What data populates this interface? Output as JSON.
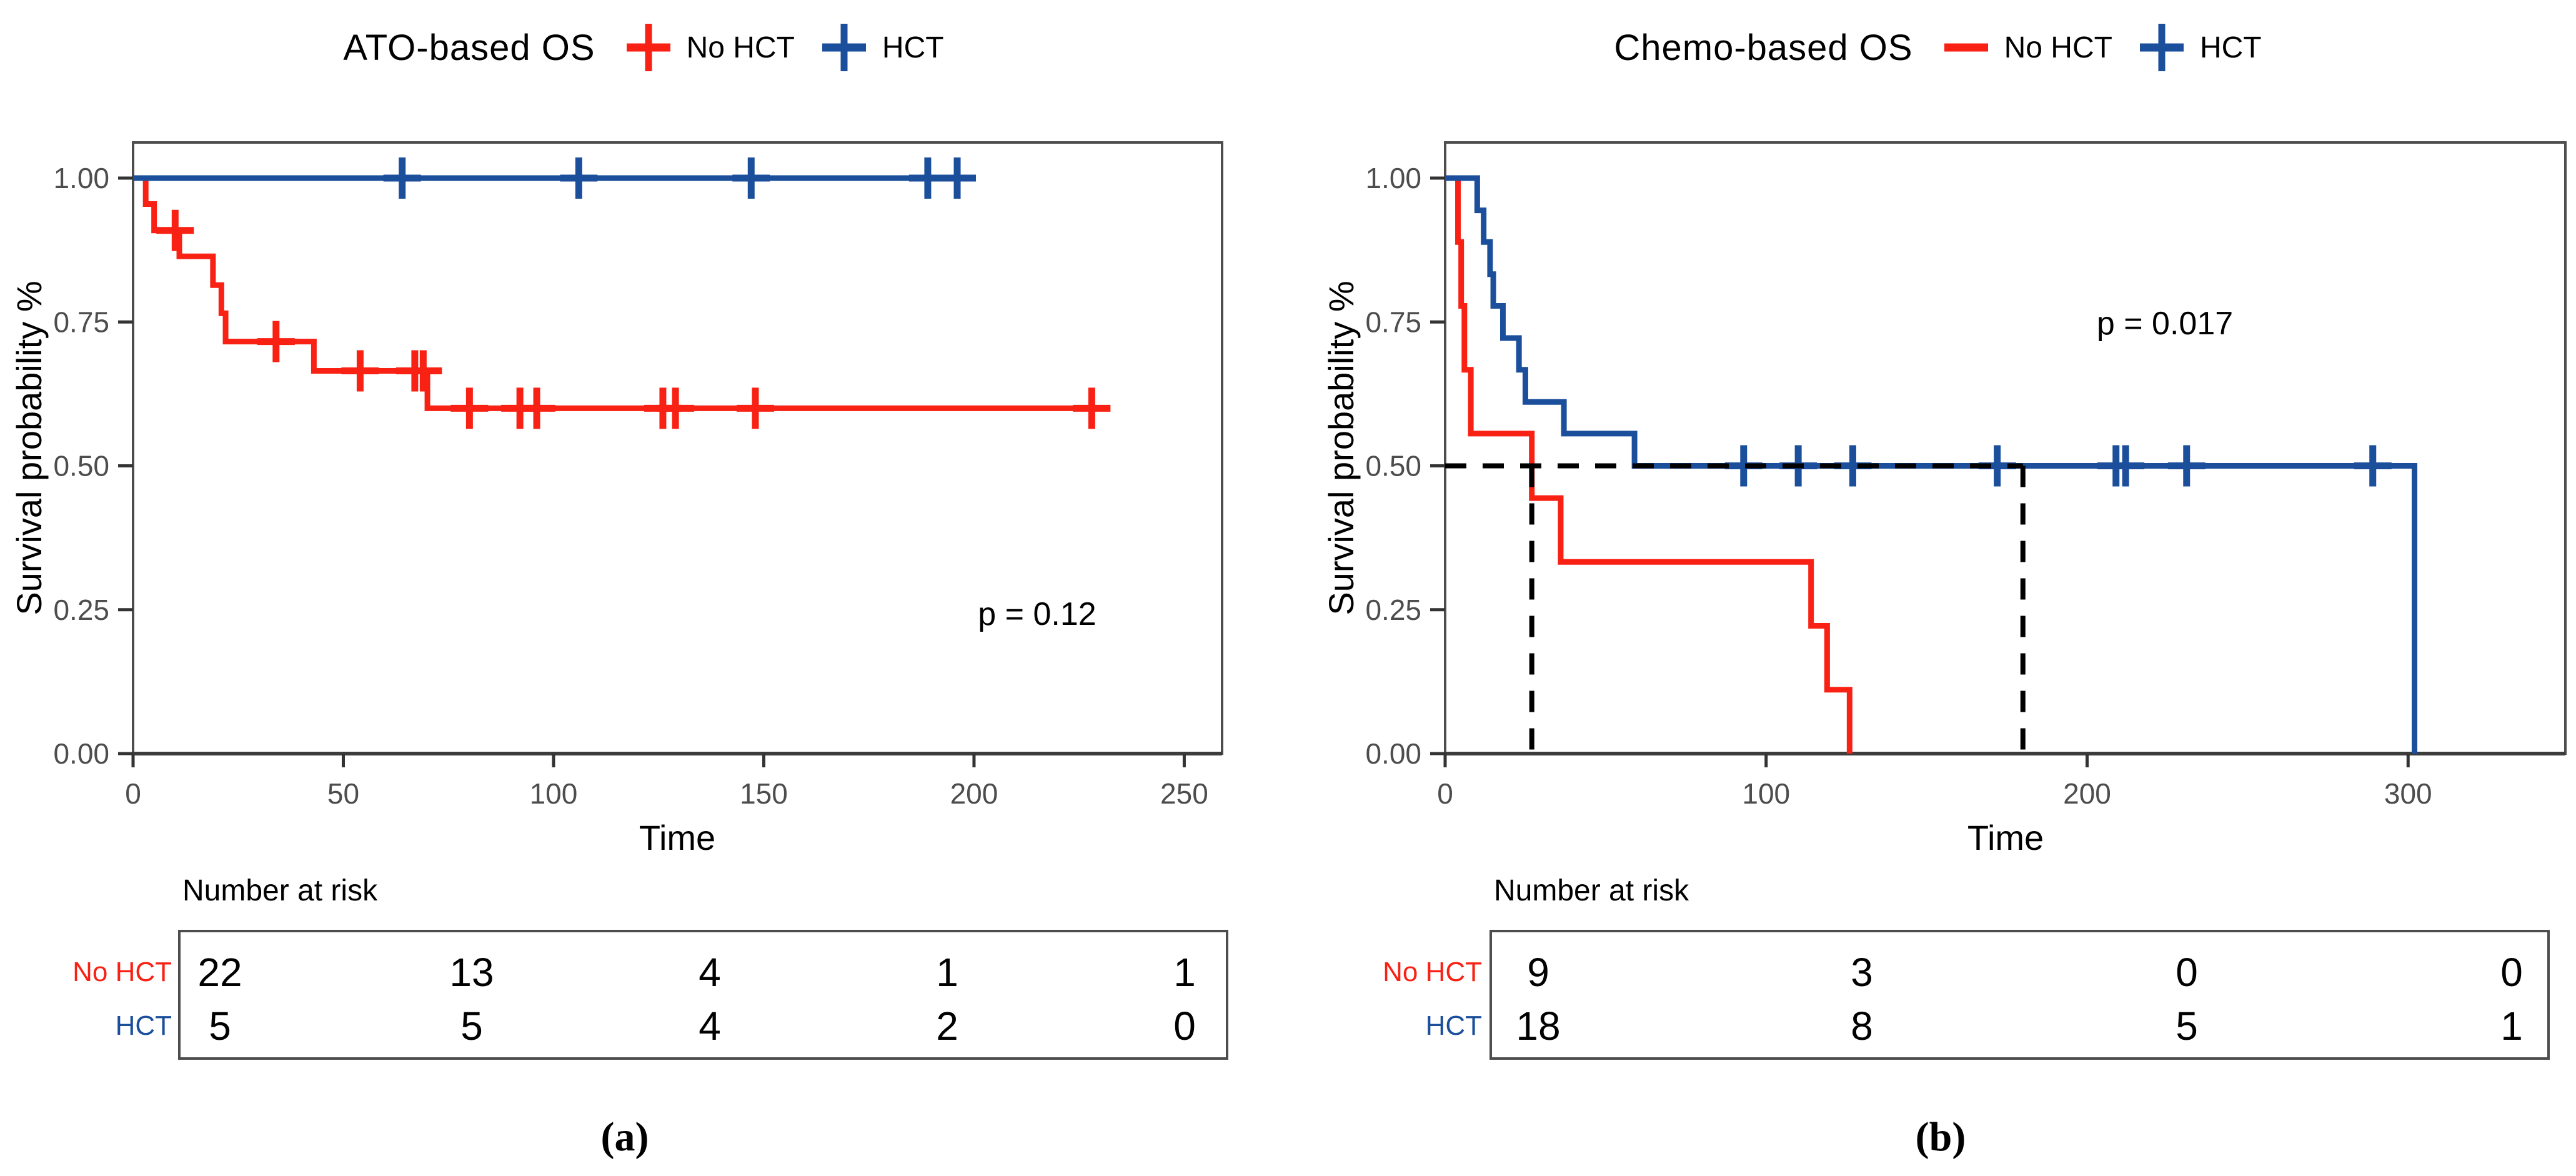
{
  "figure": {
    "background": "#ffffff",
    "colors": {
      "no_hct": "#f82114",
      "hct": "#1b4f9c",
      "axis": "#4d4d4d",
      "tick_label": "#4d4d4d",
      "text": "#000000",
      "reference_dash": "#000000"
    }
  },
  "chart_data": [
    {
      "type": "line",
      "subtype": "kaplan-meier-step",
      "title": "ATO-based OS",
      "caption": "(a)",
      "xlabel": "Time",
      "ylabel": "Survival probability %",
      "p_value_label": "p = 0.12",
      "xlim": [
        0,
        259
      ],
      "ylim": [
        0,
        1
      ],
      "x_ticks": [
        "0",
        "50",
        "100",
        "150",
        "200",
        "250"
      ],
      "y_ticks": [
        {
          "label": "1.00",
          "value": 1.0
        },
        {
          "label": "0.75",
          "value": 0.75
        },
        {
          "label": "0.50",
          "value": 0.5
        },
        {
          "label": "0.25",
          "value": 0.25
        },
        {
          "label": "0.00",
          "value": 0.0
        }
      ],
      "grid": false,
      "legend_position": "top",
      "series": [
        {
          "name": "No HCT",
          "color": "#f82114",
          "legend_marker": "plus",
          "start": [
            0,
            1.0
          ],
          "steps": [
            [
              3,
              0.955
            ],
            [
              5,
              0.909
            ],
            [
              11,
              0.864
            ],
            [
              19,
              0.814
            ],
            [
              21,
              0.765
            ],
            [
              22,
              0.716
            ],
            [
              43,
              0.665
            ],
            [
              70,
              0.6
            ]
          ],
          "end_time": 230,
          "censors": [
            [
              10,
              0.909
            ],
            [
              34,
              0.716
            ],
            [
              54,
              0.665
            ],
            [
              67,
              0.665
            ],
            [
              69,
              0.665
            ],
            [
              80,
              0.6
            ],
            [
              92,
              0.6
            ],
            [
              96,
              0.6
            ],
            [
              126,
              0.6
            ],
            [
              129,
              0.6
            ],
            [
              148,
              0.6
            ],
            [
              228,
              0.6
            ]
          ]
        },
        {
          "name": "HCT",
          "color": "#1b4f9c",
          "legend_marker": "plus",
          "start": [
            0,
            1.0
          ],
          "steps": [],
          "end_time": 198,
          "censors": [
            [
              64,
              1.0
            ],
            [
              106,
              1.0
            ],
            [
              147,
              1.0
            ],
            [
              189,
              1.0
            ],
            [
              196,
              1.0
            ]
          ]
        }
      ],
      "reference_lines": null,
      "risk_table": {
        "title": "Number at risk",
        "rows": [
          {
            "label": "No HCT",
            "color": "#f82114",
            "values": [
              "22",
              "13",
              "4",
              "1",
              "1"
            ]
          },
          {
            "label": "HCT",
            "color": "#1b4f9c",
            "values": [
              "5",
              "5",
              "4",
              "2",
              "0"
            ]
          }
        ]
      }
    },
    {
      "type": "line",
      "subtype": "kaplan-meier-step",
      "title": "Chemo-based OS",
      "caption": "(b)",
      "xlabel": "Time",
      "ylabel": "Survival probability %",
      "p_value_label": "p = 0.017",
      "xlim": [
        0,
        349
      ],
      "ylim": [
        0,
        1
      ],
      "x_ticks": [
        "0",
        "100",
        "200",
        "300"
      ],
      "y_ticks": [
        {
          "label": "1.00",
          "value": 1.0
        },
        {
          "label": "0.75",
          "value": 0.75
        },
        {
          "label": "0.50",
          "value": 0.5
        },
        {
          "label": "0.25",
          "value": 0.25
        },
        {
          "label": "0.00",
          "value": 0.0
        }
      ],
      "grid": false,
      "legend_position": "top",
      "series": [
        {
          "name": "No HCT",
          "color": "#f82114",
          "legend_marker": "line",
          "start": [
            0,
            1.0
          ],
          "steps": [
            [
              4,
              0.889
            ],
            [
              5,
              0.778
            ],
            [
              6,
              0.667
            ],
            [
              8,
              0.556
            ],
            [
              27,
              0.444
            ],
            [
              36,
              0.333
            ],
            [
              114,
              0.222
            ],
            [
              119,
              0.111
            ],
            [
              126,
              0.0
            ]
          ],
          "end_time": 126,
          "censors": []
        },
        {
          "name": "HCT",
          "color": "#1b4f9c",
          "legend_marker": "plus",
          "start": [
            0,
            1.0
          ],
          "steps": [
            [
              10,
              0.944
            ],
            [
              12,
              0.889
            ],
            [
              14,
              0.833
            ],
            [
              15,
              0.778
            ],
            [
              18,
              0.722
            ],
            [
              23,
              0.667
            ],
            [
              25,
              0.611
            ],
            [
              37,
              0.556
            ],
            [
              59,
              0.5
            ],
            [
              302,
              0.0
            ]
          ],
          "end_time": 302,
          "censors": [
            [
              93,
              0.5
            ],
            [
              110,
              0.5
            ],
            [
              127,
              0.5
            ],
            [
              172,
              0.5
            ],
            [
              209,
              0.5
            ],
            [
              212,
              0.5
            ],
            [
              231,
              0.5
            ],
            [
              289,
              0.5
            ]
          ]
        }
      ],
      "reference_lines": {
        "horizontal": {
          "p": 0.5,
          "t_start": 0,
          "t_end": 180
        },
        "verticals": [
          {
            "t": 27,
            "p": 0.5
          },
          {
            "t": 180,
            "p": 0.5
          }
        ]
      },
      "risk_table": {
        "title": "Number at risk",
        "rows": [
          {
            "label": "No HCT",
            "color": "#f82114",
            "values": [
              "9",
              "3",
              "0",
              "0"
            ]
          },
          {
            "label": "HCT",
            "color": "#1b4f9c",
            "values": [
              "18",
              "8",
              "5",
              "1"
            ]
          }
        ]
      }
    }
  ]
}
